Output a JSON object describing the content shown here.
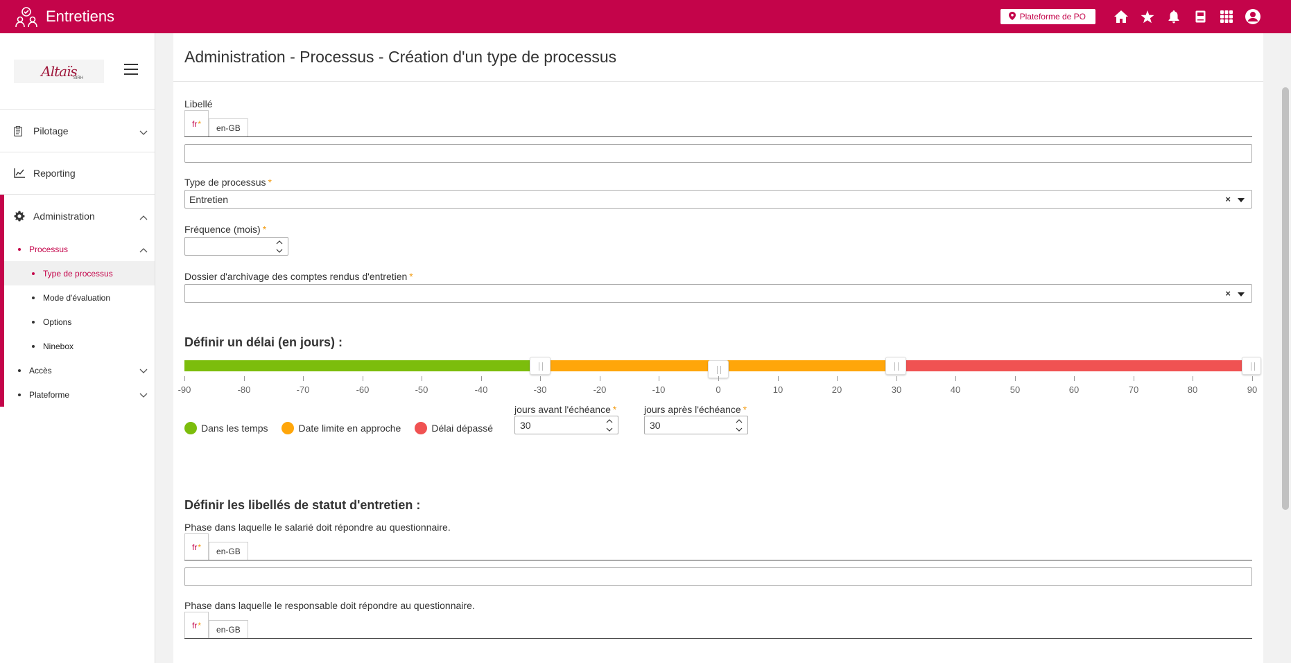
{
  "app": {
    "title": "Entretiens",
    "platform_badge": "Plateforme de PO",
    "accent_color": "#c4044a",
    "top_icons": [
      "home-icon",
      "star-icon",
      "bell-icon",
      "book-icon",
      "apps-grid-icon",
      "user-icon"
    ]
  },
  "sidebar": {
    "logo_text": "Altaïs",
    "logo_sub": "SIRH",
    "sections": {
      "pilotage": "Pilotage",
      "reporting": "Reporting",
      "administration": "Administration"
    },
    "admin_items": {
      "processus": "Processus",
      "type_processus": "Type de processus",
      "mode_evaluation": "Mode d'évaluation",
      "options": "Options",
      "ninebox": "Ninebox",
      "acces": "Accès",
      "plateforme": "Plateforme"
    }
  },
  "page": {
    "title": "Administration - Processus - Création d'un type de processus"
  },
  "form": {
    "libelle_label": "Libellé",
    "lang_fr": "fr",
    "lang_en": "en-GB",
    "required_mark": "*",
    "type_processus_label": "Type de processus",
    "type_processus_value": "Entretien",
    "frequence_label": "Fréquence (mois)",
    "frequence_value": "",
    "dossier_label": "Dossier d'archivage des comptes rendus d'entretien",
    "dossier_value": "",
    "clear_symbol": "×",
    "delai_title": "Définir un délai (en jours) :",
    "legend": {
      "on_time": "Dans les temps",
      "approaching": "Date limite en approche",
      "overdue": "Délai dépassé"
    },
    "colors": {
      "green": "#7cbd0c",
      "orange": "#ffa60a",
      "red": "#f05252"
    },
    "jours_avant_label": "jours avant l'échéance",
    "jours_avant_value": "30",
    "jours_apres_label": "jours après l'échéance",
    "jours_apres_value": "30",
    "statut_title": "Définir les libellés de statut d'entretien :",
    "phase_salarie_label": "Phase dans laquelle le salarié doit répondre au questionnaire.",
    "phase_responsable_label": "Phase dans laquelle le responsable doit répondre au questionnaire."
  },
  "slider": {
    "min": -90,
    "max": 90,
    "handles": [
      -30,
      0,
      30,
      90
    ],
    "ticks": [
      "-90",
      "-80",
      "-70",
      "-60",
      "-50",
      "-40",
      "-30",
      "-20",
      "-10",
      "0",
      "10",
      "20",
      "30",
      "40",
      "50",
      "60",
      "70",
      "80",
      "90"
    ]
  }
}
